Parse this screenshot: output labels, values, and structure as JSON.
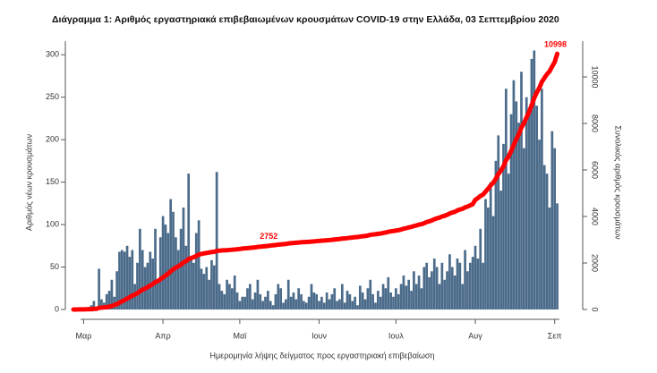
{
  "chart_data": {
    "type": "bar-line",
    "title": "Διάγραμμα 1: Αριθμός εργαστηριακά επιβεβαιωμένων κρουσμάτων COVID-19 στην Ελλάδα, 03 Σεπτεμβρίου 2020",
    "xlabel": "Ημερομηνία λήψης δείγματος προς εργαστηριακή επιβεβαίωση",
    "ylabel": "Αριθμός νέων κρουσμάτων",
    "y2label": "Συνολικός αριθμός κρουσμάτων",
    "categories": [
      null,
      null,
      null,
      null,
      "Μαρ",
      null,
      null,
      null,
      null,
      null,
      null,
      null,
      null,
      null,
      null,
      null,
      null,
      null,
      null,
      null,
      null,
      null,
      null,
      null,
      null,
      null,
      null,
      null,
      null,
      null,
      null,
      null,
      null,
      null,
      null,
      "Απρ",
      null,
      null,
      null,
      null,
      null,
      null,
      null,
      null,
      null,
      null,
      null,
      null,
      null,
      null,
      null,
      null,
      null,
      null,
      null,
      null,
      null,
      null,
      null,
      null,
      null,
      null,
      null,
      null,
      null,
      "Μαϊ",
      null,
      null,
      null,
      null,
      null,
      null,
      null,
      null,
      null,
      null,
      null,
      null,
      null,
      null,
      null,
      null,
      null,
      null,
      null,
      null,
      null,
      null,
      null,
      null,
      null,
      null,
      null,
      null,
      null,
      null,
      "Ιουν",
      null,
      null,
      null,
      null,
      null,
      null,
      null,
      null,
      null,
      null,
      null,
      null,
      null,
      null,
      null,
      null,
      null,
      null,
      null,
      null,
      null,
      null,
      null,
      null,
      null,
      null,
      null,
      null,
      null,
      "Ιουλ",
      null,
      null,
      null,
      null,
      null,
      null,
      null,
      null,
      null,
      null,
      null,
      null,
      null,
      null,
      null,
      null,
      null,
      null,
      null,
      null,
      null,
      null,
      null,
      null,
      null,
      null,
      null,
      null,
      null,
      null,
      "Αυγ",
      null,
      null,
      null,
      null,
      null,
      null,
      null,
      null,
      null,
      null,
      null,
      null,
      null,
      null,
      null,
      null,
      null,
      null,
      null,
      null,
      null,
      null,
      null,
      null,
      null,
      null,
      null,
      null,
      null,
      null,
      "Σεπ",
      null
    ],
    "series": [
      {
        "type": "bar",
        "color": "#4b6b8a",
        "values": [
          0,
          1,
          1,
          2,
          2,
          1,
          3,
          5,
          10,
          3,
          48,
          12,
          8,
          18,
          22,
          35,
          15,
          45,
          68,
          70,
          68,
          75,
          62,
          70,
          30,
          55,
          95,
          70,
          50,
          55,
          68,
          60,
          95,
          35,
          85,
          110,
          100,
          90,
          130,
          115,
          85,
          70,
          95,
          120,
          75,
          160,
          60,
          55,
          90,
          105,
          48,
          42,
          50,
          35,
          58,
          52,
          162,
          30,
          22,
          18,
          35,
          30,
          25,
          40,
          20,
          10,
          15,
          15,
          25,
          30,
          12,
          20,
          35,
          18,
          10,
          15,
          22,
          10,
          5,
          18,
          30,
          25,
          8,
          12,
          35,
          15,
          20,
          12,
          25,
          18,
          10,
          8,
          15,
          30,
          20,
          18,
          10,
          15,
          8,
          20,
          12,
          18,
          25,
          10,
          12,
          30,
          8,
          22,
          18,
          10,
          15,
          5,
          28,
          20,
          12,
          25,
          35,
          18,
          8,
          22,
          15,
          30,
          25,
          38,
          20,
          15,
          25,
          18,
          30,
          40,
          28,
          35,
          22,
          45,
          30,
          40,
          25,
          50,
          55,
          38,
          45,
          60,
          50,
          30,
          55,
          35,
          45,
          65,
          50,
          40,
          60,
          55,
          30,
          70,
          45,
          55,
          62,
          75,
          60,
          95,
          55,
          130,
          120,
          150,
          110,
          175,
          205,
          140,
          195,
          260,
          160,
          230,
          270,
          245,
          220,
          280,
          190,
          250,
          230,
          295,
          305,
          240,
          200,
          260,
          170,
          160,
          120,
          210,
          190,
          125
        ]
      },
      {
        "type": "line",
        "axis": "y2",
        "color": "#ff0000",
        "values": [
          1,
          2,
          3,
          5,
          7,
          8,
          10,
          15,
          25,
          30,
          70,
          80,
          90,
          100,
          120,
          150,
          190,
          230,
          290,
          350,
          410,
          470,
          530,
          600,
          640,
          700,
          780,
          850,
          900,
          960,
          1030,
          1090,
          1180,
          1220,
          1300,
          1380,
          1460,
          1540,
          1640,
          1730,
          1800,
          1860,
          1930,
          2020,
          2080,
          2170,
          2210,
          2250,
          2300,
          2360,
          2390,
          2410,
          2430,
          2450,
          2470,
          2480,
          2520,
          2530,
          2540,
          2545,
          2550,
          2560,
          2570,
          2580,
          2590,
          2600,
          2620,
          2630,
          2640,
          2650,
          2660,
          2670,
          2690,
          2700,
          2710,
          2720,
          2730,
          2752,
          2760,
          2770,
          2790,
          2800,
          2810,
          2820,
          2840,
          2850,
          2860,
          2870,
          2880,
          2890,
          2900,
          2905,
          2910,
          2920,
          2930,
          2940,
          2950,
          2960,
          2965,
          2975,
          2985,
          2995,
          3010,
          3020,
          3030,
          3050,
          3055,
          3070,
          3085,
          3095,
          3110,
          3115,
          3135,
          3150,
          3160,
          3180,
          3210,
          3225,
          3235,
          3255,
          3265,
          3290,
          3310,
          3340,
          3360,
          3375,
          3395,
          3410,
          3440,
          3475,
          3500,
          3530,
          3550,
          3590,
          3615,
          3650,
          3670,
          3710,
          3760,
          3790,
          3830,
          3880,
          3920,
          3950,
          4000,
          4030,
          4070,
          4130,
          4170,
          4200,
          4260,
          4300,
          4330,
          4390,
          4430,
          4480,
          4530,
          4720,
          4790,
          4880,
          4940,
          5070,
          5190,
          5340,
          5450,
          5620,
          5830,
          5970,
          6160,
          6420,
          6580,
          6810,
          7080,
          7320,
          7540,
          7820,
          8010,
          8260,
          8490,
          8780,
          9090,
          9330,
          9530,
          9790,
          9960,
          10120,
          10240,
          10450,
          10640,
          10998
        ],
        "value_labels": [
          null,
          null,
          null,
          null,
          null,
          null,
          null,
          null,
          null,
          null,
          null,
          null,
          null,
          null,
          null,
          null,
          null,
          null,
          null,
          null,
          null,
          null,
          null,
          null,
          null,
          null,
          null,
          null,
          null,
          null,
          null,
          null,
          null,
          null,
          null,
          null,
          null,
          null,
          null,
          null,
          null,
          null,
          null,
          null,
          null,
          null,
          null,
          null,
          null,
          null,
          null,
          null,
          null,
          null,
          null,
          null,
          null,
          null,
          null,
          null,
          null,
          null,
          null,
          null,
          null,
          null,
          null,
          null,
          null,
          null,
          null,
          null,
          null,
          null,
          null,
          null,
          null,
          "2752",
          null,
          null,
          null,
          null,
          null,
          null,
          null,
          null,
          null,
          null,
          null,
          null,
          null,
          null,
          null,
          null,
          null,
          null,
          null,
          null,
          null,
          null,
          null,
          null,
          null,
          null,
          null,
          null,
          null,
          null,
          null,
          null,
          null,
          null,
          null,
          null,
          null,
          null,
          null,
          null,
          null,
          null,
          null,
          null,
          null,
          null,
          null,
          null,
          null,
          null,
          null,
          null,
          null,
          null,
          null,
          null,
          null,
          null,
          null,
          null,
          null,
          null,
          null,
          null,
          null,
          null,
          null,
          null,
          null,
          null,
          null,
          null,
          null,
          null,
          null,
          null,
          null,
          null,
          null,
          null,
          null,
          null,
          null,
          null,
          null,
          null,
          null,
          null,
          null,
          null,
          null,
          null,
          null,
          null,
          null,
          null,
          null,
          null,
          null,
          null,
          null,
          null,
          null,
          null,
          null,
          null,
          null,
          null,
          null,
          null,
          null,
          "10998"
        ]
      }
    ],
    "ylim": [
      0,
      316
    ],
    "yticks": [
      0,
      50,
      100,
      150,
      200,
      250,
      300
    ],
    "y2lim": [
      0,
      11540
    ],
    "y2ticks": [
      0,
      2000,
      4000,
      6000,
      8000,
      10000
    ]
  }
}
